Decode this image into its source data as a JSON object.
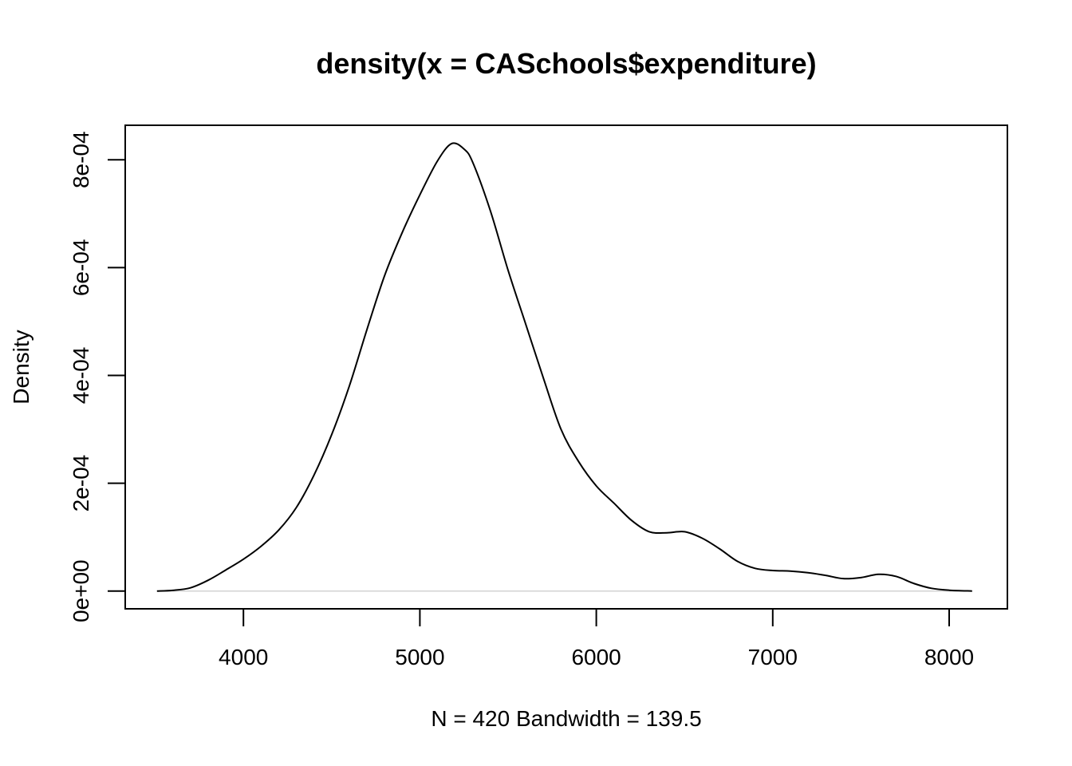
{
  "chart_data": {
    "type": "line",
    "title": "density(x = CASchools$expenditure)",
    "xlabel": "N = 420   Bandwidth = 139.5",
    "ylabel": "Density",
    "xlim": [
      3330,
      8330
    ],
    "ylim": [
      -3.3e-05,
      0.000864
    ],
    "x_ticks": [
      4000,
      5000,
      6000,
      7000,
      8000
    ],
    "x_tick_labels": [
      "4000",
      "5000",
      "6000",
      "7000",
      "8000"
    ],
    "y_ticks": [
      0,
      0.0002,
      0.0004,
      0.0006,
      0.0008
    ],
    "y_tick_labels": [
      "0e+00",
      "2e-04",
      "4e-04",
      "6e-04",
      "8e-04"
    ],
    "grid": false,
    "zero_line": true,
    "colors": {
      "line": "#000000",
      "zero_line": "#d3d3d3"
    },
    "series": [
      {
        "x": [
          3510,
          3600,
          3700,
          3800,
          3900,
          4000,
          4100,
          4200,
          4300,
          4400,
          4500,
          4600,
          4700,
          4800,
          4900,
          5000,
          5100,
          5180,
          5250,
          5300,
          5400,
          5500,
          5600,
          5700,
          5800,
          5900,
          6000,
          6100,
          6200,
          6300,
          6400,
          6500,
          6600,
          6700,
          6800,
          6900,
          7000,
          7100,
          7200,
          7300,
          7400,
          7500,
          7600,
          7700,
          7800,
          7900,
          8000,
          8130
        ],
        "y": [
          0.0,
          1.3e-06,
          6e-06,
          2e-05,
          3.9e-05,
          5.9e-05,
          8.3e-05,
          0.000113,
          0.000155,
          0.000215,
          0.00029,
          0.00038,
          0.000485,
          0.000585,
          0.000665,
          0.000735,
          0.000798,
          0.00083,
          0.00082,
          0.000795,
          0.000705,
          0.000595,
          0.000495,
          0.000395,
          0.0003,
          0.00024,
          0.000195,
          0.000163,
          0.000131,
          0.00011,
          0.000108,
          0.00011,
          9.8e-05,
          7.8e-05,
          5.5e-05,
          4.2e-05,
          3.8e-05,
          3.7e-05,
          3.4e-05,
          2.9e-05,
          2.3e-05,
          2.5e-05,
          3.1e-05,
          2.7e-05,
          1.4e-05,
          5e-06,
          1.5e-06,
          0.0
        ]
      }
    ]
  }
}
